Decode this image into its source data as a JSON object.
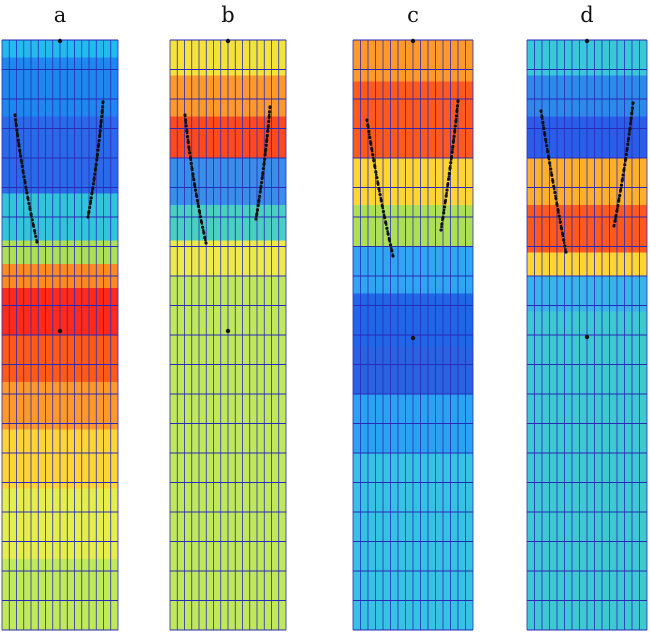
{
  "panels": [
    {
      "id": "a",
      "label": "a",
      "field": [
        {
          "from": 0.0,
          "to": 0.03,
          "color": "#22bbee"
        },
        {
          "from": 0.03,
          "to": 0.13,
          "color": "#1e88ee"
        },
        {
          "from": 0.13,
          "to": 0.26,
          "color": "#2a6ae8"
        },
        {
          "from": 0.26,
          "to": 0.34,
          "color": "#32c4d8"
        },
        {
          "from": 0.34,
          "to": 0.38,
          "color": "#aee056"
        },
        {
          "from": 0.38,
          "to": 0.42,
          "color": "#ff8a1e"
        },
        {
          "from": 0.42,
          "to": 0.5,
          "color": "#ff2a1a"
        },
        {
          "from": 0.5,
          "to": 0.58,
          "color": "#ff5a16"
        },
        {
          "from": 0.58,
          "to": 0.66,
          "color": "#ff9a2a"
        },
        {
          "from": 0.66,
          "to": 0.76,
          "color": "#ffd534"
        },
        {
          "from": 0.76,
          "to": 0.88,
          "color": "#e6ee4a"
        },
        {
          "from": 0.88,
          "to": 1.0,
          "color": "#c0ea58"
        }
      ]
    },
    {
      "id": "b",
      "label": "b",
      "field": [
        {
          "from": 0.0,
          "to": 0.06,
          "color": "#f4e43a"
        },
        {
          "from": 0.06,
          "to": 0.13,
          "color": "#ff9a2a"
        },
        {
          "from": 0.13,
          "to": 0.2,
          "color": "#ff4a1e"
        },
        {
          "from": 0.2,
          "to": 0.28,
          "color": "#3a8ee8"
        },
        {
          "from": 0.28,
          "to": 0.34,
          "color": "#4ad0c0"
        },
        {
          "from": 0.34,
          "to": 0.4,
          "color": "#eeea4a"
        },
        {
          "from": 0.4,
          "to": 1.0,
          "color": "#c0e85a"
        }
      ]
    },
    {
      "id": "c",
      "label": "c",
      "field": [
        {
          "from": 0.0,
          "to": 0.07,
          "color": "#ff9a2a"
        },
        {
          "from": 0.07,
          "to": 0.2,
          "color": "#ff5a1e"
        },
        {
          "from": 0.2,
          "to": 0.28,
          "color": "#ffd534"
        },
        {
          "from": 0.28,
          "to": 0.35,
          "color": "#aee056"
        },
        {
          "from": 0.35,
          "to": 0.43,
          "color": "#30a6f0"
        },
        {
          "from": 0.43,
          "to": 0.52,
          "color": "#2266e8"
        },
        {
          "from": 0.52,
          "to": 0.6,
          "color": "#2a62e0"
        },
        {
          "from": 0.6,
          "to": 0.7,
          "color": "#2aa4f0"
        },
        {
          "from": 0.7,
          "to": 1.0,
          "color": "#36c2e2"
        }
      ]
    },
    {
      "id": "d",
      "label": "d",
      "field": [
        {
          "from": 0.0,
          "to": 0.06,
          "color": "#38c8d8"
        },
        {
          "from": 0.06,
          "to": 0.13,
          "color": "#2e8ae8"
        },
        {
          "from": 0.13,
          "to": 0.2,
          "color": "#2a5ee8"
        },
        {
          "from": 0.2,
          "to": 0.28,
          "color": "#ffb02a"
        },
        {
          "from": 0.28,
          "to": 0.36,
          "color": "#ff5a1e"
        },
        {
          "from": 0.36,
          "to": 0.4,
          "color": "#ffd534"
        },
        {
          "from": 0.4,
          "to": 0.46,
          "color": "#3ab4e8"
        },
        {
          "from": 0.46,
          "to": 1.0,
          "color": "#3ec8d2"
        }
      ]
    }
  ]
}
